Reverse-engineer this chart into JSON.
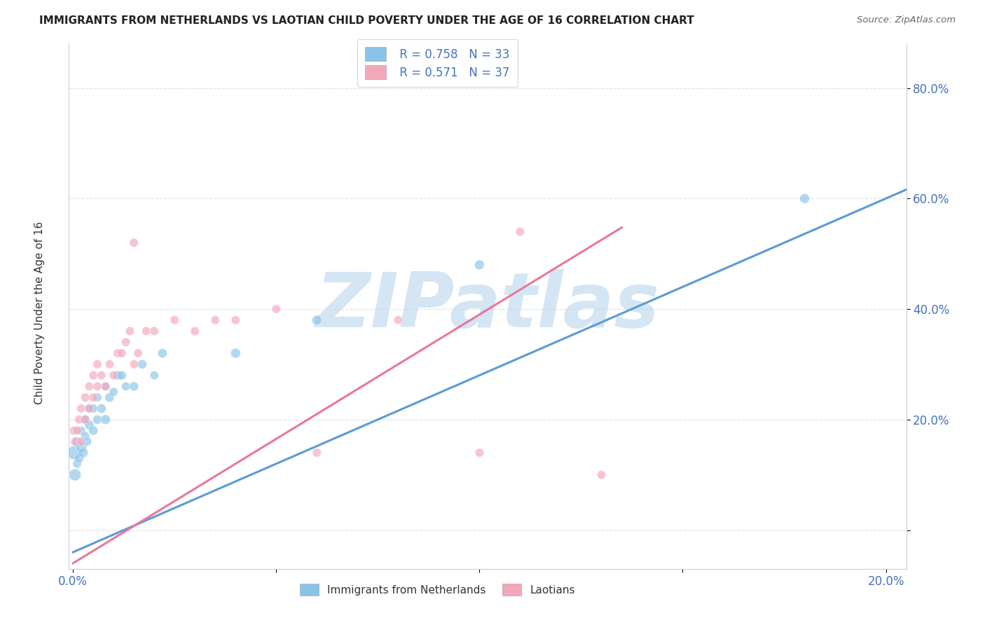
{
  "title": "IMMIGRANTS FROM NETHERLANDS VS LAOTIAN CHILD POVERTY UNDER THE AGE OF 16 CORRELATION CHART",
  "source": "Source: ZipAtlas.com",
  "ylabel": "Child Poverty Under the Age of 16",
  "xlim": [
    -0.001,
    0.205
  ],
  "ylim": [
    -0.07,
    0.88
  ],
  "yticks": [
    0.0,
    0.2,
    0.4,
    0.6,
    0.8
  ],
  "ytick_labels": [
    "",
    "20.0%",
    "40.0%",
    "60.0%",
    "80.0%"
  ],
  "xticks": [
    0.0,
    0.05,
    0.1,
    0.15,
    0.2
  ],
  "xtick_labels": [
    "0.0%",
    "",
    "",
    "",
    "20.0%"
  ],
  "legend_r1": "R = 0.758",
  "legend_n1": "N = 33",
  "legend_r2": "R = 0.571",
  "legend_n2": "N = 37",
  "color_blue": "#89c4e8",
  "color_pink": "#f4a7b9",
  "color_blue_line": "#5b9bd5",
  "color_pink_line": "#e8789a",
  "color_gray_dash": "#c0c0c0",
  "watermark": "ZIPatlas",
  "watermark_color": "#b8d4ee",
  "blue_line_slope": 3.2,
  "blue_line_intercept": -0.04,
  "pink_line_slope": 4.5,
  "pink_line_intercept": -0.06,
  "blue_scatter_x": [
    0.0003,
    0.0005,
    0.001,
    0.001,
    0.0015,
    0.002,
    0.002,
    0.0025,
    0.003,
    0.003,
    0.0035,
    0.004,
    0.004,
    0.005,
    0.005,
    0.006,
    0.006,
    0.007,
    0.008,
    0.008,
    0.009,
    0.01,
    0.011,
    0.012,
    0.013,
    0.015,
    0.017,
    0.02,
    0.022,
    0.04,
    0.06,
    0.1,
    0.18
  ],
  "blue_scatter_y": [
    0.14,
    0.1,
    0.16,
    0.12,
    0.13,
    0.15,
    0.18,
    0.14,
    0.17,
    0.2,
    0.16,
    0.19,
    0.22,
    0.18,
    0.22,
    0.2,
    0.24,
    0.22,
    0.2,
    0.26,
    0.24,
    0.25,
    0.28,
    0.28,
    0.26,
    0.26,
    0.3,
    0.28,
    0.32,
    0.32,
    0.38,
    0.48,
    0.6
  ],
  "blue_scatter_sizes": [
    200,
    150,
    100,
    80,
    90,
    120,
    80,
    100,
    80,
    90,
    80,
    90,
    80,
    90,
    80,
    90,
    80,
    90,
    100,
    80,
    90,
    80,
    90,
    90,
    80,
    90,
    90,
    80,
    90,
    100,
    100,
    100,
    100
  ],
  "pink_scatter_x": [
    0.0002,
    0.0005,
    0.001,
    0.0015,
    0.002,
    0.002,
    0.003,
    0.003,
    0.004,
    0.004,
    0.005,
    0.005,
    0.006,
    0.006,
    0.007,
    0.008,
    0.009,
    0.01,
    0.011,
    0.012,
    0.013,
    0.014,
    0.015,
    0.016,
    0.018,
    0.02,
    0.025,
    0.03,
    0.035,
    0.04,
    0.05,
    0.06,
    0.08,
    0.1,
    0.11,
    0.13,
    0.015
  ],
  "pink_scatter_y": [
    0.18,
    0.16,
    0.18,
    0.2,
    0.22,
    0.16,
    0.24,
    0.2,
    0.22,
    0.26,
    0.24,
    0.28,
    0.26,
    0.3,
    0.28,
    0.26,
    0.3,
    0.28,
    0.32,
    0.32,
    0.34,
    0.36,
    0.3,
    0.32,
    0.36,
    0.36,
    0.38,
    0.36,
    0.38,
    0.38,
    0.4,
    0.14,
    0.38,
    0.14,
    0.54,
    0.1,
    0.52
  ],
  "pink_scatter_sizes": [
    80,
    80,
    80,
    80,
    80,
    80,
    80,
    80,
    80,
    80,
    80,
    80,
    80,
    80,
    80,
    80,
    80,
    80,
    80,
    80,
    80,
    80,
    80,
    80,
    80,
    80,
    80,
    80,
    80,
    80,
    80,
    80,
    80,
    80,
    80,
    80,
    80
  ],
  "background_color": "#ffffff",
  "grid_color": "#e0e0e0"
}
